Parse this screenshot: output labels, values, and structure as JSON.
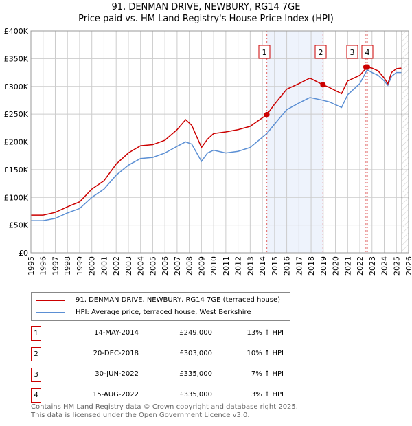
{
  "title": "91, DENMAN DRIVE, NEWBURY, RG14 7GE",
  "subtitle": "Price paid vs. HM Land Registry's House Price Index (HPI)",
  "chart_data": {
    "type": "line",
    "xlim": [
      1995,
      2026
    ],
    "ylim": [
      0,
      400000
    ],
    "x_ticks": [
      "1995",
      "1996",
      "1997",
      "1998",
      "1999",
      "2000",
      "2001",
      "2002",
      "2003",
      "2004",
      "2005",
      "2006",
      "2007",
      "2008",
      "2009",
      "2010",
      "2011",
      "2012",
      "2013",
      "2014",
      "2015",
      "2016",
      "2017",
      "2018",
      "2019",
      "2020",
      "2021",
      "2022",
      "2023",
      "2024",
      "2025",
      "2026"
    ],
    "y_ticks": [
      {
        "v": 0,
        "l": "£0"
      },
      {
        "v": 50000,
        "l": "£50K"
      },
      {
        "v": 100000,
        "l": "£100K"
      },
      {
        "v": 150000,
        "l": "£150K"
      },
      {
        "v": 200000,
        "l": "£200K"
      },
      {
        "v": 250000,
        "l": "£250K"
      },
      {
        "v": 300000,
        "l": "£300K"
      },
      {
        "v": 350000,
        "l": "£350K"
      },
      {
        "v": 400000,
        "l": "£400K"
      }
    ],
    "series": [
      {
        "name": "91, DENMAN DRIVE, NEWBURY, RG14 7GE (terraced house)",
        "color": "#cc0000",
        "x": [
          1995,
          1996,
          1997,
          1998,
          1999,
          2000,
          2001,
          2002,
          2003,
          2004,
          2005,
          2006,
          2007,
          2007.7,
          2008.2,
          2009,
          2009.5,
          2010,
          2011,
          2012,
          2013,
          2014.37,
          2015,
          2016,
          2017,
          2017.9,
          2018.97,
          2019.5,
          2020.5,
          2021,
          2022,
          2022.6,
          2023,
          2023.5,
          2024,
          2024.3,
          2024.6,
          2025,
          2025.4
        ],
        "y": [
          68000,
          68000,
          73000,
          83000,
          92000,
          115000,
          130000,
          160000,
          180000,
          193000,
          195000,
          203000,
          222000,
          240000,
          230000,
          190000,
          205000,
          215000,
          218000,
          222000,
          228000,
          249000,
          268000,
          295000,
          305000,
          315000,
          303000,
          298000,
          287000,
          310000,
          320000,
          335000,
          333000,
          328000,
          315000,
          305000,
          325000,
          332000,
          333000
        ]
      },
      {
        "name": "HPI: Average price, terraced house, West Berkshire",
        "color": "#5b8fd4",
        "x": [
          1995,
          1996,
          1997,
          1998,
          1999,
          2000,
          2001,
          2002,
          2003,
          2004,
          2005,
          2006,
          2007,
          2007.7,
          2008.2,
          2009,
          2009.5,
          2010,
          2011,
          2012,
          2013,
          2014.37,
          2015,
          2016,
          2017,
          2017.9,
          2018.97,
          2019.5,
          2020.5,
          2021,
          2022,
          2022.6,
          2023,
          2023.5,
          2024,
          2024.3,
          2024.6,
          2025,
          2025.4
        ],
        "y": [
          58000,
          58000,
          62000,
          72000,
          80000,
          100000,
          115000,
          140000,
          158000,
          170000,
          172000,
          180000,
          192000,
          200000,
          196000,
          165000,
          180000,
          185000,
          180000,
          183000,
          190000,
          215000,
          232000,
          258000,
          270000,
          280000,
          275000,
          272000,
          262000,
          285000,
          305000,
          330000,
          325000,
          320000,
          310000,
          302000,
          318000,
          325000,
          325000
        ]
      }
    ],
    "sales": [
      {
        "n": "1",
        "x": 2014.37,
        "y": 249000
      },
      {
        "n": "2",
        "x": 2018.97,
        "y": 303000
      },
      {
        "n": "3",
        "x": 2022.5,
        "y": 335000
      },
      {
        "n": "4",
        "x": 2022.62,
        "y": 335000
      }
    ],
    "shaded_range": [
      2014.37,
      2018.97
    ],
    "hatch_from": 2025.45
  },
  "legend": [
    "91, DENMAN DRIVE, NEWBURY, RG14 7GE (terraced house)",
    "HPI: Average price, terraced house, West Berkshire"
  ],
  "table": [
    {
      "n": "1",
      "date": "14-MAY-2014",
      "price": "£249,000",
      "hpi": "13% ↑ HPI"
    },
    {
      "n": "2",
      "date": "20-DEC-2018",
      "price": "£303,000",
      "hpi": "10% ↑ HPI"
    },
    {
      "n": "3",
      "date": "30-JUN-2022",
      "price": "£335,000",
      "hpi": "7% ↑ HPI"
    },
    {
      "n": "4",
      "date": "15-AUG-2022",
      "price": "£335,000",
      "hpi": "3% ↑ HPI"
    }
  ],
  "footer": [
    "Contains HM Land Registry data © Crown copyright and database right 2025.",
    "This data is licensed under the Open Government Licence v3.0."
  ]
}
